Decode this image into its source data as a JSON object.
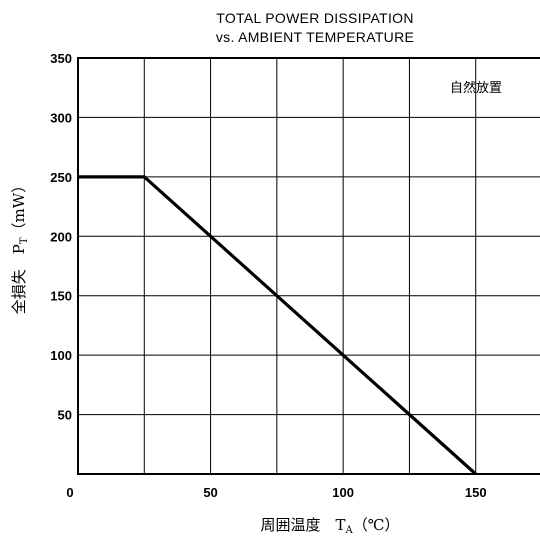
{
  "chart_data": {
    "type": "line",
    "title_line1": "TOTAL POWER DISSIPATION",
    "title_line2": "vs. AMBIENT TEMPERATURE",
    "xlabel": "周囲温度　T",
    "xlabel_sub": "A",
    "xlabel_unit": "（℃）",
    "ylabel": "全損失　P",
    "ylabel_sub": "T",
    "ylabel_unit": "（mW）",
    "annotation": "自然放置",
    "xlim": [
      0,
      175
    ],
    "ylim": [
      0,
      350
    ],
    "x_gridlines": [
      25,
      50,
      75,
      100,
      125,
      150,
      175
    ],
    "y_gridlines": [
      50,
      100,
      150,
      200,
      250,
      300,
      350
    ],
    "x_tick_labels": [
      {
        "value": 0,
        "label": "0"
      },
      {
        "value": 50,
        "label": "50"
      },
      {
        "value": 100,
        "label": "100"
      },
      {
        "value": 150,
        "label": "150"
      }
    ],
    "y_tick_labels": [
      {
        "value": 50,
        "label": "50"
      },
      {
        "value": 100,
        "label": "100"
      },
      {
        "value": 150,
        "label": "150"
      },
      {
        "value": 200,
        "label": "200"
      },
      {
        "value": 250,
        "label": "250"
      },
      {
        "value": 300,
        "label": "300"
      },
      {
        "value": 350,
        "label": "350"
      }
    ],
    "series": [
      {
        "x": [
          0,
          25,
          150
        ],
        "y": [
          250,
          250,
          0
        ]
      }
    ],
    "grid": true
  }
}
